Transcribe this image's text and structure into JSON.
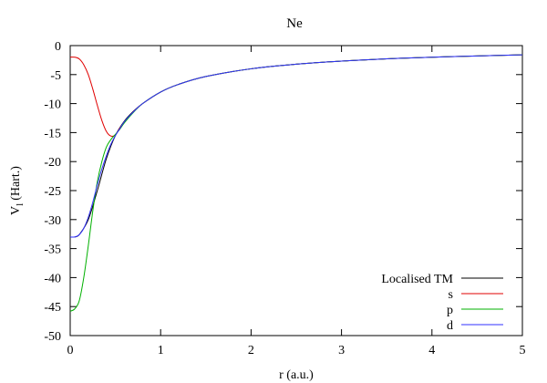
{
  "chart_data": {
    "type": "line",
    "title": "Ne",
    "xlabel": "r (a.u.)",
    "ylabel_main": "V",
    "ylabel_sub": "l",
    "ylabel_unit": "(Hart.)",
    "xlim": [
      0,
      5
    ],
    "ylim": [
      -50,
      0
    ],
    "xticks": [
      0,
      1,
      2,
      3,
      4,
      5
    ],
    "yticks": [
      0,
      -5,
      -10,
      -15,
      -20,
      -25,
      -30,
      -35,
      -40,
      -45,
      -50
    ],
    "grid": false,
    "legend_position": "bottom-right",
    "colors": {
      "axis": "#000000",
      "localised": "#000000"
    },
    "series": [
      {
        "name": "Localised TM",
        "color": "#000000",
        "x": [
          0.05,
          0.1,
          0.2,
          0.3,
          0.4,
          0.5,
          0.6,
          0.7,
          0.8,
          1.0,
          1.2,
          1.5,
          2.0,
          2.5,
          3.0,
          3.5,
          4.0,
          4.5,
          5.0
        ],
        "y": [
          -33.0,
          -32.6,
          -30.0,
          -25.0,
          -19.5,
          -15.5,
          -13.0,
          -11.3,
          -10.0,
          -8.0,
          -6.67,
          -5.33,
          -4.0,
          -3.2,
          -2.67,
          -2.29,
          -2.0,
          -1.78,
          -1.6
        ]
      },
      {
        "name": "s",
        "color": "#e00000",
        "x": [
          0.0,
          0.05,
          0.1,
          0.15,
          0.2,
          0.25,
          0.3,
          0.35,
          0.4,
          0.45,
          0.5,
          0.55,
          0.6,
          0.7,
          0.8,
          1.0,
          1.2,
          1.5,
          2.0,
          2.5,
          3.0,
          3.5,
          4.0,
          4.5,
          5.0
        ],
        "y": [
          -2.0,
          -2.0,
          -2.3,
          -3.3,
          -5.0,
          -7.5,
          -10.3,
          -12.9,
          -14.8,
          -15.6,
          -15.4,
          -14.2,
          -13.2,
          -11.4,
          -10.0,
          -8.0,
          -6.67,
          -5.33,
          -4.0,
          -3.2,
          -2.67,
          -2.29,
          -2.0,
          -1.78,
          -1.6
        ]
      },
      {
        "name": "p",
        "color": "#00b000",
        "x": [
          0.0,
          0.05,
          0.1,
          0.15,
          0.2,
          0.25,
          0.3,
          0.35,
          0.4,
          0.45,
          0.5,
          0.55,
          0.6,
          0.7,
          0.8,
          1.0,
          1.2,
          1.5,
          2.0,
          2.5,
          3.0,
          3.5,
          4.0,
          4.5,
          5.0
        ],
        "y": [
          -45.8,
          -45.4,
          -44.0,
          -40.0,
          -34.5,
          -28.5,
          -23.5,
          -20.0,
          -17.5,
          -16.2,
          -15.3,
          -14.4,
          -13.3,
          -11.5,
          -10.0,
          -8.0,
          -6.67,
          -5.33,
          -4.0,
          -3.2,
          -2.67,
          -2.29,
          -2.0,
          -1.78,
          -1.6
        ]
      },
      {
        "name": "d",
        "color": "#3030ff",
        "x": [
          0.0,
          0.05,
          0.1,
          0.15,
          0.2,
          0.25,
          0.3,
          0.35,
          0.4,
          0.45,
          0.5,
          0.55,
          0.6,
          0.7,
          0.8,
          1.0,
          1.2,
          1.5,
          2.0,
          2.5,
          3.0,
          3.5,
          4.0,
          4.5,
          5.0
        ],
        "y": [
          -33.0,
          -33.0,
          -32.6,
          -31.5,
          -29.6,
          -27.0,
          -24.0,
          -21.3,
          -19.0,
          -17.0,
          -15.5,
          -14.3,
          -13.1,
          -11.4,
          -10.0,
          -8.0,
          -6.67,
          -5.33,
          -4.0,
          -3.2,
          -2.67,
          -2.29,
          -2.0,
          -1.78,
          -1.6
        ]
      }
    ]
  }
}
